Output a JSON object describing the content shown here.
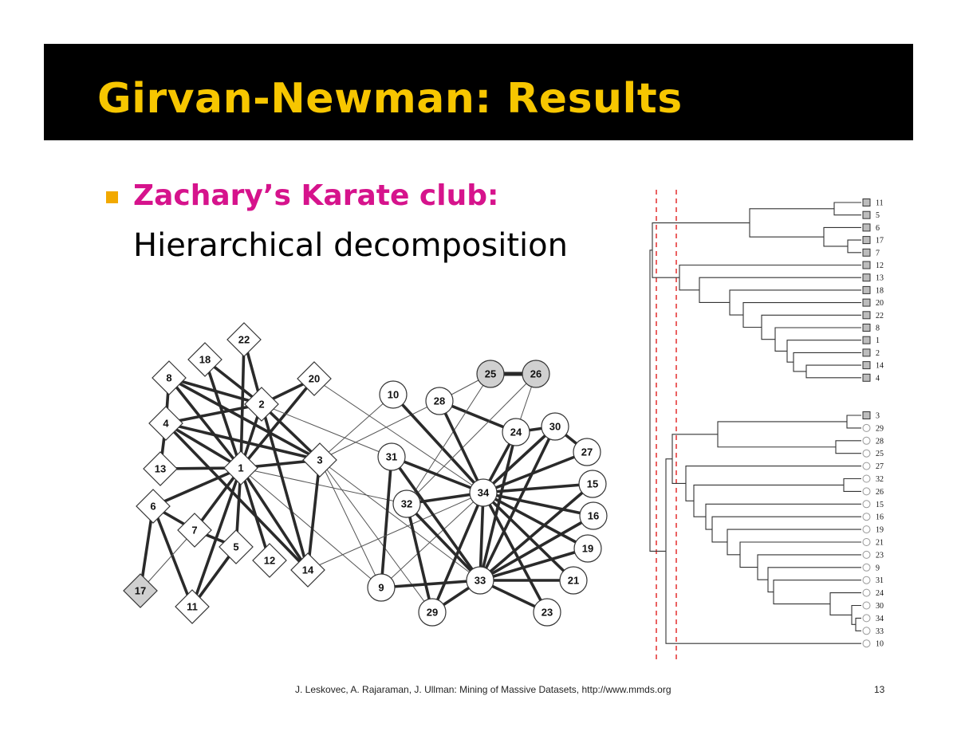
{
  "slide": {
    "title": "Girvan-Newman: Results",
    "bullet_heading": "Zachary’s Karate club:",
    "bullet_text": "Hierarchical decomposition",
    "footer": "J. Leskovec, A. Rajaraman, J. Ullman: Mining of Massive Datasets, http://www.mmds.org",
    "page_number": "13"
  },
  "colors": {
    "title_bar": "#000000",
    "title_text": "#f7c600",
    "bullet_heading": "#d6138c",
    "bullet_square": "#f2a900",
    "cut_line": "#e02020",
    "highlight_node": "#d0d0d0"
  },
  "network": {
    "nodes": [
      {
        "id": "1",
        "shape": "diamond",
        "group": "left"
      },
      {
        "id": "2",
        "shape": "diamond",
        "group": "left"
      },
      {
        "id": "3",
        "shape": "diamond",
        "group": "left"
      },
      {
        "id": "4",
        "shape": "diamond",
        "group": "left"
      },
      {
        "id": "5",
        "shape": "diamond",
        "group": "left"
      },
      {
        "id": "6",
        "shape": "diamond",
        "group": "left"
      },
      {
        "id": "7",
        "shape": "diamond",
        "group": "left"
      },
      {
        "id": "8",
        "shape": "diamond",
        "group": "left"
      },
      {
        "id": "11",
        "shape": "diamond",
        "group": "left"
      },
      {
        "id": "12",
        "shape": "diamond",
        "group": "left"
      },
      {
        "id": "13",
        "shape": "diamond",
        "group": "left"
      },
      {
        "id": "14",
        "shape": "diamond",
        "group": "left"
      },
      {
        "id": "17",
        "shape": "diamond",
        "group": "left",
        "shaded": true
      },
      {
        "id": "18",
        "shape": "diamond",
        "group": "left"
      },
      {
        "id": "20",
        "shape": "diamond",
        "group": "left"
      },
      {
        "id": "22",
        "shape": "diamond",
        "group": "left"
      },
      {
        "id": "9",
        "shape": "circle",
        "group": "right"
      },
      {
        "id": "10",
        "shape": "circle",
        "group": "right"
      },
      {
        "id": "15",
        "shape": "circle",
        "group": "right"
      },
      {
        "id": "16",
        "shape": "circle",
        "group": "right"
      },
      {
        "id": "19",
        "shape": "circle",
        "group": "right"
      },
      {
        "id": "21",
        "shape": "circle",
        "group": "right"
      },
      {
        "id": "23",
        "shape": "circle",
        "group": "right"
      },
      {
        "id": "24",
        "shape": "circle",
        "group": "right"
      },
      {
        "id": "25",
        "shape": "circle",
        "group": "right",
        "shaded": true
      },
      {
        "id": "26",
        "shape": "circle",
        "group": "right",
        "shaded": true
      },
      {
        "id": "27",
        "shape": "circle",
        "group": "right"
      },
      {
        "id": "28",
        "shape": "circle",
        "group": "right"
      },
      {
        "id": "29",
        "shape": "circle",
        "group": "right"
      },
      {
        "id": "30",
        "shape": "circle",
        "group": "right"
      },
      {
        "id": "31",
        "shape": "circle",
        "group": "right"
      },
      {
        "id": "32",
        "shape": "circle",
        "group": "right"
      },
      {
        "id": "33",
        "shape": "circle",
        "group": "right"
      },
      {
        "id": "34",
        "shape": "circle",
        "group": "right"
      }
    ],
    "edges": [
      [
        "1",
        "2",
        1
      ],
      [
        "1",
        "3",
        1
      ],
      [
        "1",
        "4",
        1
      ],
      [
        "1",
        "5",
        1
      ],
      [
        "1",
        "6",
        1
      ],
      [
        "1",
        "7",
        1
      ],
      [
        "1",
        "8",
        1
      ],
      [
        "1",
        "11",
        1
      ],
      [
        "1",
        "12",
        1
      ],
      [
        "1",
        "13",
        1
      ],
      [
        "1",
        "14",
        1
      ],
      [
        "1",
        "18",
        1
      ],
      [
        "1",
        "20",
        1
      ],
      [
        "1",
        "22",
        1
      ],
      [
        "1",
        "32",
        0
      ],
      [
        "1",
        "9",
        0
      ],
      [
        "2",
        "3",
        1
      ],
      [
        "2",
        "4",
        1
      ],
      [
        "2",
        "8",
        1
      ],
      [
        "2",
        "14",
        1
      ],
      [
        "2",
        "18",
        1
      ],
      [
        "2",
        "20",
        1
      ],
      [
        "2",
        "22",
        1
      ],
      [
        "2",
        "31",
        0
      ],
      [
        "3",
        "4",
        1
      ],
      [
        "3",
        "8",
        1
      ],
      [
        "3",
        "14",
        1
      ],
      [
        "3",
        "9",
        0
      ],
      [
        "3",
        "10",
        0
      ],
      [
        "3",
        "28",
        0
      ],
      [
        "3",
        "29",
        0
      ],
      [
        "3",
        "33",
        0
      ],
      [
        "4",
        "8",
        1
      ],
      [
        "4",
        "13",
        1
      ],
      [
        "4",
        "14",
        1
      ],
      [
        "5",
        "7",
        1
      ],
      [
        "5",
        "11",
        1
      ],
      [
        "6",
        "7",
        1
      ],
      [
        "6",
        "11",
        1
      ],
      [
        "6",
        "17",
        1
      ],
      [
        "7",
        "17",
        0
      ],
      [
        "9",
        "31",
        1
      ],
      [
        "9",
        "33",
        1
      ],
      [
        "9",
        "34",
        0
      ],
      [
        "10",
        "34",
        1
      ],
      [
        "14",
        "34",
        0
      ],
      [
        "20",
        "34",
        0
      ],
      [
        "15",
        "33",
        1
      ],
      [
        "15",
        "34",
        1
      ],
      [
        "16",
        "33",
        1
      ],
      [
        "16",
        "34",
        1
      ],
      [
        "19",
        "33",
        1
      ],
      [
        "19",
        "34",
        1
      ],
      [
        "21",
        "33",
        1
      ],
      [
        "21",
        "34",
        1
      ],
      [
        "23",
        "33",
        1
      ],
      [
        "23",
        "34",
        1
      ],
      [
        "24",
        "26",
        0
      ],
      [
        "24",
        "28",
        1
      ],
      [
        "24",
        "30",
        1
      ],
      [
        "24",
        "33",
        1
      ],
      [
        "24",
        "34",
        1
      ],
      [
        "25",
        "26",
        2
      ],
      [
        "25",
        "28",
        0
      ],
      [
        "25",
        "32",
        0
      ],
      [
        "26",
        "32",
        0
      ],
      [
        "27",
        "30",
        1
      ],
      [
        "27",
        "34",
        1
      ],
      [
        "28",
        "34",
        1
      ],
      [
        "29",
        "32",
        1
      ],
      [
        "29",
        "34",
        1
      ],
      [
        "29",
        "33",
        1
      ],
      [
        "30",
        "33",
        1
      ],
      [
        "30",
        "34",
        1
      ],
      [
        "31",
        "33",
        1
      ],
      [
        "31",
        "34",
        1
      ],
      [
        "32",
        "33",
        1
      ],
      [
        "32",
        "34",
        1
      ],
      [
        "33",
        "34",
        1
      ]
    ]
  },
  "dendrogram": {
    "top_leaves": [
      "11",
      "5",
      "6",
      "17",
      "7",
      "12",
      "13",
      "18",
      "20",
      "22",
      "8",
      "1",
      "2",
      "14",
      "4"
    ],
    "bottom_leaves": [
      "3",
      "29",
      "28",
      "25",
      "27",
      "32",
      "26",
      "15",
      "16",
      "19",
      "21",
      "23",
      "9",
      "31",
      "24",
      "30",
      "34",
      "33",
      "10"
    ]
  }
}
